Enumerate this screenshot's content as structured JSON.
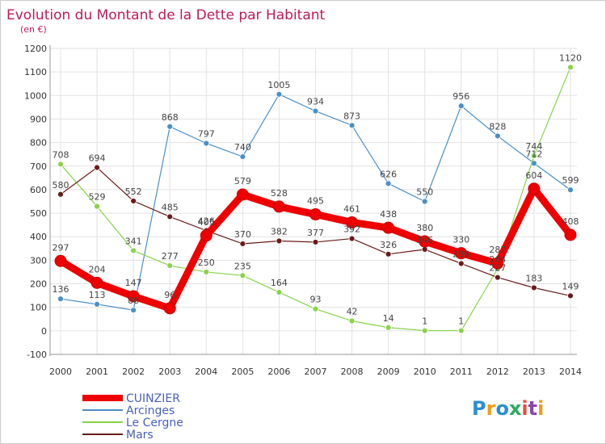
{
  "title": "Evolution du Montant de la Dette par Habitant",
  "unit": "(en €)",
  "logo": {
    "letters": [
      "P",
      "r",
      "o",
      "x",
      "i",
      "t",
      "i"
    ],
    "colors": [
      "#2a8fd0",
      "#f39c12",
      "#2a8fd0",
      "#27ae60",
      "#e74c3c",
      "#8e44ad",
      "#f39c12"
    ]
  },
  "chart_data": {
    "type": "line",
    "title": "Evolution du Montant de la Dette par Habitant",
    "ylabel": "(en €)",
    "xlabel": "",
    "categories": [
      "2000",
      "2001",
      "2002",
      "2003",
      "2004",
      "2005",
      "2006",
      "2007",
      "2008",
      "2009",
      "2010",
      "2011",
      "2012",
      "2013",
      "2014"
    ],
    "ylim": [
      -100,
      1200
    ],
    "yticks": [
      -100,
      0,
      100,
      200,
      300,
      400,
      500,
      600,
      700,
      800,
      900,
      1000,
      1100,
      1200
    ],
    "grid": true,
    "legend": "bottom-left",
    "series": [
      {
        "name": "CUINZIER",
        "color": "#ee0000",
        "width": 9,
        "radius": 7,
        "values": [
          297,
          204,
          147,
          96,
          405,
          579,
          528,
          495,
          461,
          438,
          380,
          330,
          287,
          604,
          408
        ],
        "labels": [
          "297",
          "204",
          "147",
          "96",
          "405",
          "579",
          "528",
          "495",
          "461",
          "438",
          "380",
          "330",
          "287",
          "604",
          "408"
        ]
      },
      {
        "name": "Arcinges",
        "color": "#4a90c8",
        "width": 1.2,
        "radius": 3.5,
        "values": [
          136,
          113,
          88,
          868,
          797,
          740,
          1005,
          934,
          873,
          626,
          550,
          956,
          828,
          712,
          599
        ],
        "labels": [
          "136",
          "113",
          "88",
          "868",
          "797",
          "740",
          "1005",
          "934",
          "873",
          "626",
          "550",
          "956",
          "828",
          "712",
          "599"
        ]
      },
      {
        "name": "Le Cergne",
        "color": "#88d44a",
        "width": 1.2,
        "radius": 3.5,
        "values": [
          708,
          529,
          341,
          277,
          250,
          235,
          164,
          93,
          42,
          14,
          1,
          1,
          264,
          744,
          1120
        ],
        "labels": [
          "708",
          "529",
          "341",
          "277",
          "250",
          "235",
          "164",
          "93",
          "42",
          "14",
          "1",
          "1",
          "264",
          "744",
          "1120"
        ]
      },
      {
        "name": "Mars",
        "color": "#6b1a1a",
        "width": 1.2,
        "radius": 3.5,
        "values": [
          580,
          694,
          552,
          485,
          426,
          370,
          382,
          377,
          392,
          326,
          346,
          286,
          227,
          183,
          149
        ],
        "labels": [
          "580",
          "694",
          "552",
          "485",
          "426",
          "370",
          "382",
          "377",
          "392",
          "326",
          "346",
          "286",
          "227",
          "183",
          "149"
        ]
      }
    ]
  }
}
